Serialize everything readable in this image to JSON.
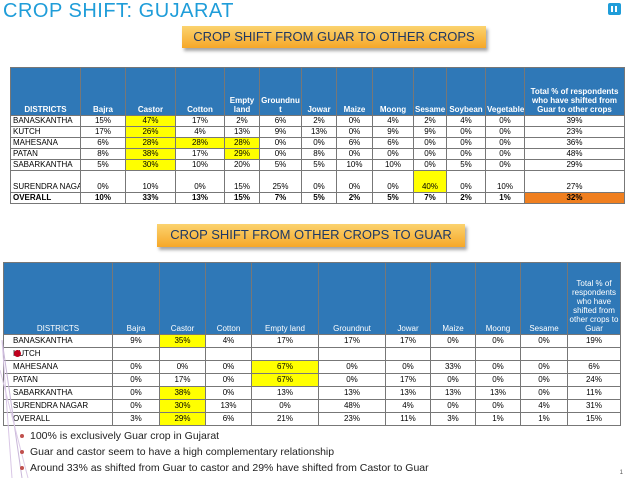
{
  "title": "CROP SHIFT: GUJARAT",
  "banner1": "CROP SHIFT FROM GUAR TO OTHER CROPS",
  "banner2": "CROP SHIFT FROM OTHER CROPS  TO GUAR",
  "colors": {
    "title": "#1f9dd9",
    "header": "#2f78b7",
    "highlight": "#ffff00",
    "accent": "#f07f1f",
    "banner": "#f6a728"
  },
  "table1": {
    "headers": [
      "DISTRICTS",
      "Bajra",
      "Castor",
      "Cotton",
      "Empty land",
      "Groundnu t",
      "Jowar",
      "Maize",
      "Moong",
      "Sesame",
      "Soybean",
      "Vegetable",
      "Total % of respondents who have shifted from Guar to other crops"
    ],
    "rows": [
      [
        "BANASKANTHA",
        "15%",
        "47%",
        "17%",
        "2%",
        "6%",
        "2%",
        "0%",
        "4%",
        "2%",
        "4%",
        "0%",
        "39%"
      ],
      [
        "KUTCH",
        "17%",
        "26%",
        "4%",
        "13%",
        "9%",
        "13%",
        "0%",
        "9%",
        "9%",
        "0%",
        "0%",
        "23%"
      ],
      [
        "MAHESANA",
        "6%",
        "28%",
        "28%",
        "28%",
        "0%",
        "0%",
        "6%",
        "6%",
        "0%",
        "0%",
        "0%",
        "36%"
      ],
      [
        "PATAN",
        "8%",
        "38%",
        "17%",
        "29%",
        "0%",
        "8%",
        "0%",
        "0%",
        "0%",
        "0%",
        "0%",
        "48%"
      ],
      [
        "SABARKANTHA",
        "5%",
        "30%",
        "10%",
        "20%",
        "5%",
        "5%",
        "10%",
        "10%",
        "0%",
        "5%",
        "0%",
        "29%"
      ],
      [
        "SURENDRA NAGAR",
        "0%",
        "10%",
        "0%",
        "15%",
        "25%",
        "0%",
        "0%",
        "0%",
        "40%",
        "0%",
        "10%",
        "27%"
      ],
      [
        "OVERALL",
        "10%",
        "33%",
        "13%",
        "15%",
        "7%",
        "5%",
        "2%",
        "5%",
        "7%",
        "2%",
        "1%",
        "32%"
      ]
    ]
  },
  "table2": {
    "headers": [
      "DISTRICTS",
      "Bajra",
      "Castor",
      "Cotton",
      "Empty land",
      "Groundnut",
      "Jowar",
      "Maize",
      "Moong",
      "Sesame",
      "Total % of respondents who have shifted from other crops to Guar"
    ],
    "rows": [
      [
        "BANASKANTHA",
        "9%",
        "35%",
        "4%",
        "17%",
        "17%",
        "17%",
        "0%",
        "0%",
        "0%",
        "19%"
      ],
      [
        "KUTCH",
        "",
        "",
        "",
        "",
        "",
        "",
        "",
        "",
        "",
        ""
      ],
      [
        "MAHESANA",
        "0%",
        "0%",
        "0%",
        "67%",
        "0%",
        "0%",
        "33%",
        "0%",
        "0%",
        "6%"
      ],
      [
        "PATAN",
        "0%",
        "17%",
        "0%",
        "67%",
        "0%",
        "17%",
        "0%",
        "0%",
        "0%",
        "24%"
      ],
      [
        "SABARKANTHA",
        "0%",
        "38%",
        "0%",
        "13%",
        "13%",
        "13%",
        "13%",
        "13%",
        "0%",
        "11%"
      ],
      [
        "SURENDRA NAGAR",
        "0%",
        "30%",
        "13%",
        "0%",
        "48%",
        "4%",
        "0%",
        "0%",
        "4%",
        "31%"
      ],
      [
        "OVERALL",
        "3%",
        "29%",
        "6%",
        "21%",
        "23%",
        "11%",
        "3%",
        "1%",
        "1%",
        "15%"
      ]
    ]
  },
  "bullets": [
    "100% is exclusively Guar crop in Gujarat",
    "Guar and castor seem to have a high complementary relationship",
    "Around 33% as shifted from Guar to castor and 29% have shifted from Castor to Guar"
  ],
  "page_number": "1"
}
